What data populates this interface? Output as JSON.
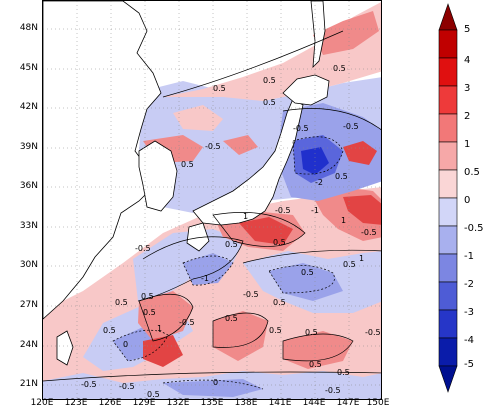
{
  "map": {
    "lat_labels": [
      "48N",
      "45N",
      "42N",
      "39N",
      "36N",
      "33N",
      "30N",
      "27N",
      "24N",
      "21N"
    ],
    "lon_labels": [
      "120E",
      "123E",
      "126E",
      "129E",
      "132E",
      "135E",
      "138E",
      "141E",
      "144E",
      "147E",
      "150E"
    ],
    "contour_labels": [
      "0.5",
      "0.5",
      "-0.5",
      "0.5",
      "0.5",
      "-0.5",
      "-0.5",
      "0.5",
      "0.5",
      "1",
      "-0.5",
      "-1",
      "-2",
      "1",
      "0.5",
      "-0.5",
      "-0.5",
      "0.5",
      "0.5",
      "1",
      "0.5",
      "-0.5",
      "-1",
      "0.5",
      "0.5",
      "0.5",
      "-0.5",
      "0.5",
      "1",
      "-0.5",
      "0.5",
      "0",
      "0",
      "0.5",
      "-0.5",
      "0.5",
      "0.5",
      "0.5",
      "-0.5",
      "0.5",
      "-0.5",
      "0.5"
    ],
    "colors": {
      "pos_0_0.5": "#f8c8c8",
      "pos_0.5_1": "#f08a8a",
      "pos_1_2": "#e24444",
      "pos_2_3": "#d00000",
      "neg_0_-0.5": "#c8ccf4",
      "neg_-0.5_-1": "#9aa2ea",
      "neg_-1_-2": "#5a66dc",
      "neg_-2_-3": "#2030cc"
    }
  },
  "colorbar": {
    "labels": [
      "5",
      "4",
      "3",
      "2",
      "1",
      "0.5",
      "0",
      "-0.5",
      "-1",
      "-2",
      "-3",
      "-4",
      "-5"
    ],
    "colors": [
      "#8c0000",
      "#c00000",
      "#e01010",
      "#ee3a3a",
      "#f27878",
      "#f6a8a8",
      "#fad6d6",
      "#d2d6f8",
      "#a8b0ee",
      "#7c86e2",
      "#4e5cd6",
      "#2636c8",
      "#0a1caa",
      "#001090"
    ]
  }
}
